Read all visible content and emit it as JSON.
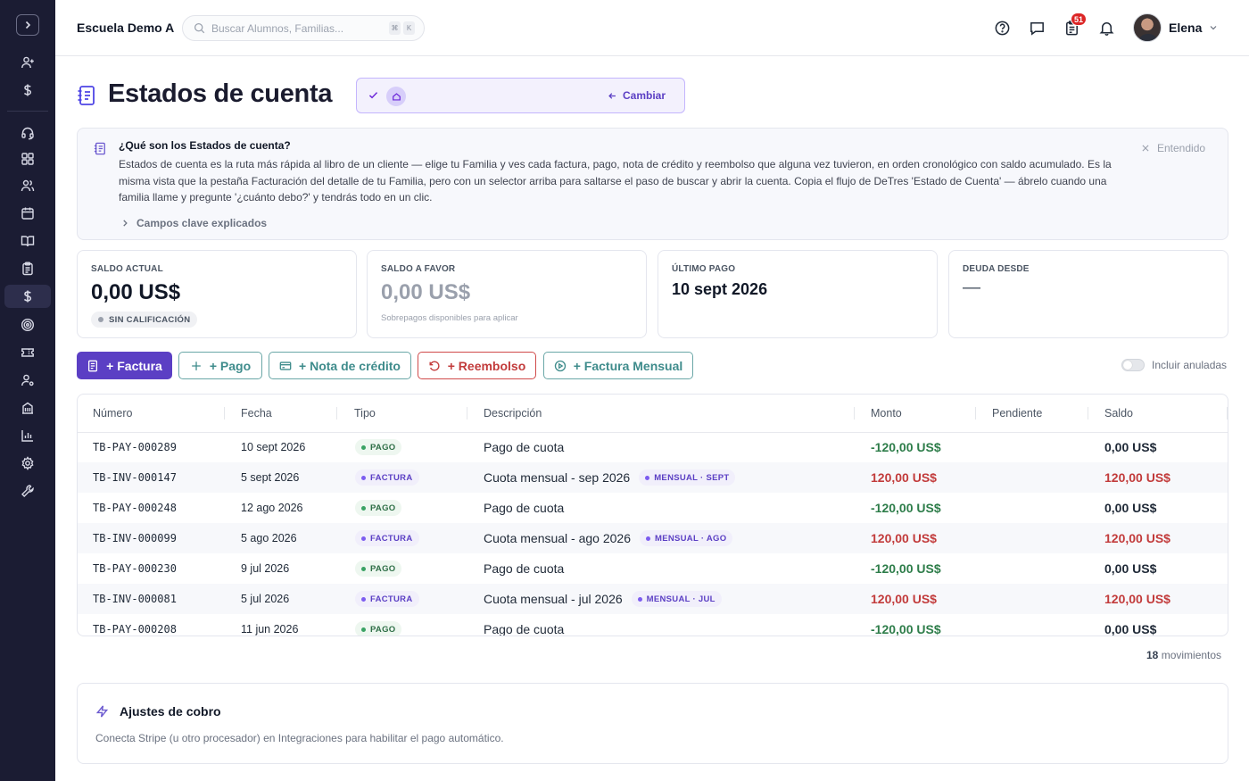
{
  "app": {
    "school_name": "Escuela Demo A",
    "search_placeholder": "Buscar Alumnos, Familias...",
    "search_shortcut": [
      "⌘",
      "K"
    ],
    "notifications_count": "51",
    "user_name": "Elena"
  },
  "sidebar": {
    "items": [
      {
        "icon": "user-plus-icon"
      },
      {
        "icon": "dollar-icon"
      },
      {
        "icon": "headset-icon"
      },
      {
        "icon": "grid-icon"
      },
      {
        "icon": "users-icon"
      },
      {
        "icon": "calendar-icon"
      },
      {
        "icon": "book-open-icon"
      },
      {
        "icon": "clipboard-icon"
      },
      {
        "icon": "dollar-icon",
        "active": true
      },
      {
        "icon": "target-icon"
      },
      {
        "icon": "ticket-icon"
      },
      {
        "icon": "user-settings-icon"
      },
      {
        "icon": "building-icon"
      },
      {
        "icon": "bar-chart-icon"
      },
      {
        "icon": "gear-icon"
      },
      {
        "icon": "wrench-icon"
      }
    ]
  },
  "page": {
    "title": "Estados de cuenta",
    "change_label": "Cambiar"
  },
  "info": {
    "title": "¿Qué son los Estados de cuenta?",
    "body": "Estados de cuenta es la ruta más rápida al libro de un cliente — elige tu Familia y ves cada factura, pago, nota de crédito y reembolso que alguna vez tuvieron, en orden cronológico con saldo acumulado. Es la misma vista que la pestaña Facturación del detalle de tu Familia, pero con un selector arriba para saltarse el paso de buscar y abrir la cuenta. Copia el flujo de DeTres 'Estado de Cuenta' — ábrelo cuando una familia llame y pregunte '¿cuánto debo?' y tendrás todo en un clic.",
    "dismiss_label": "Entendido",
    "expand_label": "Campos clave explicados"
  },
  "stats": {
    "saldo_actual": {
      "label": "SALDO ACTUAL",
      "value": "0,00 US$",
      "badge": "SIN CALIFICACIÓN"
    },
    "saldo_favor": {
      "label": "SALDO A FAVOR",
      "value": "0,00 US$",
      "note": "Sobrepagos disponibles para aplicar"
    },
    "ultimo_pago": {
      "label": "ÚLTIMO PAGO",
      "value": "10 sept 2026"
    },
    "deuda_desde": {
      "label": "DEUDA DESDE",
      "value": "—"
    }
  },
  "actions": {
    "factura": "+ Factura",
    "pago": "+ Pago",
    "nota": "+ Nota de crédito",
    "reembolso": "+ Reembolso",
    "mensual": "+ Factura Mensual",
    "include_voided": "Incluir anuladas"
  },
  "table": {
    "headers": [
      "Número",
      "Fecha",
      "Tipo",
      "Descripción",
      "Monto",
      "Pendiente",
      "Saldo"
    ],
    "rows": [
      {
        "num": "TB-PAY-000289",
        "date": "10 sept 2026",
        "type": "PAGO",
        "desc": "Pago de cuota",
        "tag": "",
        "monto": "-120,00 US$",
        "pendiente": "",
        "saldo": "0,00 US$"
      },
      {
        "num": "TB-INV-000147",
        "date": "5 sept 2026",
        "type": "FACTURA",
        "desc": "Cuota mensual - sep 2026",
        "tag": "MENSUAL · SEPT",
        "monto": "120,00 US$",
        "pendiente": "",
        "saldo": "120,00 US$"
      },
      {
        "num": "TB-PAY-000248",
        "date": "12 ago 2026",
        "type": "PAGO",
        "desc": "Pago de cuota",
        "tag": "",
        "monto": "-120,00 US$",
        "pendiente": "",
        "saldo": "0,00 US$"
      },
      {
        "num": "TB-INV-000099",
        "date": "5 ago 2026",
        "type": "FACTURA",
        "desc": "Cuota mensual - ago 2026",
        "tag": "MENSUAL · AGO",
        "monto": "120,00 US$",
        "pendiente": "",
        "saldo": "120,00 US$"
      },
      {
        "num": "TB-PAY-000230",
        "date": "9 jul 2026",
        "type": "PAGO",
        "desc": "Pago de cuota",
        "tag": "",
        "monto": "-120,00 US$",
        "pendiente": "",
        "saldo": "0,00 US$"
      },
      {
        "num": "TB-INV-000081",
        "date": "5 jul 2026",
        "type": "FACTURA",
        "desc": "Cuota mensual - jul 2026",
        "tag": "MENSUAL · JUL",
        "monto": "120,00 US$",
        "pendiente": "",
        "saldo": "120,00 US$"
      },
      {
        "num": "TB-PAY-000208",
        "date": "11 jun 2026",
        "type": "PAGO",
        "desc": "Pago de cuota",
        "tag": "",
        "monto": "-120,00 US$",
        "pendiente": "",
        "saldo": "0,00 US$"
      }
    ],
    "count": "18",
    "count_label": "movimientos"
  },
  "settings": {
    "title": "Ajustes de cobro",
    "body": "Conecta Stripe (u otro procesador) en Integraciones para habilitar el pago automático."
  },
  "colors": {
    "sidebar_bg": "#1b1c33",
    "accent": "#5b3fc4",
    "negative_amount": "#2e7d4a",
    "positive_amount": "#c23b3b"
  }
}
